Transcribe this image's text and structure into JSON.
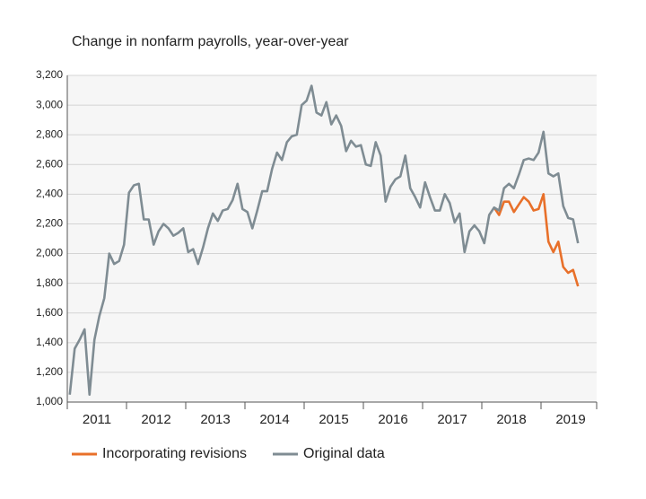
{
  "chart_data": {
    "type": "line",
    "title": "Change in nonfarm payrolls, year-over-year",
    "categories": [
      null,
      null,
      null,
      null,
      null,
      "2011",
      null,
      null,
      null,
      null,
      null,
      null,
      null,
      null,
      null,
      null,
      null,
      "2012",
      null,
      null,
      null,
      null,
      null,
      null,
      null,
      null,
      null,
      null,
      null,
      "2013",
      null,
      null,
      null,
      null,
      null,
      null,
      null,
      null,
      null,
      null,
      null,
      "2014",
      null,
      null,
      null,
      null,
      null,
      null,
      null,
      null,
      null,
      null,
      null,
      "2015",
      null,
      null,
      null,
      null,
      null,
      null,
      null,
      null,
      null,
      null,
      null,
      "2016",
      null,
      null,
      null,
      null,
      null,
      null,
      null,
      null,
      null,
      null,
      null,
      "2017",
      null,
      null,
      null,
      null,
      null,
      null,
      null,
      null,
      null,
      null,
      null,
      "2018",
      null,
      null,
      null,
      null,
      null,
      null,
      null,
      null,
      null,
      null,
      null,
      "2019",
      null,
      null
    ],
    "series": [
      {
        "name": "Incorporating revisions",
        "color": "#e8702a",
        "values": [
          null,
          null,
          null,
          null,
          null,
          null,
          null,
          null,
          null,
          null,
          null,
          null,
          null,
          null,
          null,
          null,
          null,
          null,
          null,
          null,
          null,
          null,
          null,
          null,
          null,
          null,
          null,
          null,
          null,
          null,
          null,
          null,
          null,
          null,
          null,
          null,
          null,
          null,
          null,
          null,
          null,
          null,
          null,
          null,
          null,
          null,
          null,
          null,
          null,
          null,
          null,
          null,
          null,
          null,
          null,
          null,
          null,
          null,
          null,
          null,
          null,
          null,
          null,
          null,
          null,
          null,
          null,
          null,
          null,
          null,
          null,
          null,
          null,
          null,
          null,
          null,
          null,
          null,
          null,
          null,
          null,
          null,
          null,
          null,
          null,
          null,
          2310,
          2260,
          2350,
          2350,
          2280,
          2330,
          2380,
          2350,
          2290,
          2300,
          2400,
          2080,
          2010,
          2080,
          1910,
          1870,
          1890,
          1780
        ]
      },
      {
        "name": "Original data",
        "color": "#7f8c93",
        "values": [
          1050,
          1360,
          1420,
          1490,
          1050,
          1420,
          1580,
          1700,
          2000,
          1930,
          1950,
          2060,
          2410,
          2460,
          2470,
          2230,
          2230,
          2060,
          2150,
          2200,
          2170,
          2120,
          2140,
          2170,
          2010,
          2030,
          1930,
          2040,
          2170,
          2270,
          2220,
          2290,
          2300,
          2360,
          2470,
          2300,
          2280,
          2170,
          2290,
          2420,
          2420,
          2570,
          2680,
          2630,
          2750,
          2790,
          2800,
          3000,
          3030,
          3130,
          2950,
          2930,
          3020,
          2870,
          2930,
          2860,
          2690,
          2760,
          2720,
          2730,
          2600,
          2590,
          2750,
          2660,
          2350,
          2450,
          2500,
          2520,
          2660,
          2440,
          2380,
          2310,
          2480,
          2380,
          2290,
          2290,
          2400,
          2340,
          2210,
          2270,
          2010,
          2150,
          2190,
          2150,
          2070,
          2260,
          2310,
          2290,
          2440,
          2470,
          2440,
          2530,
          2630,
          2640,
          2630,
          2680,
          2820,
          2540,
          2520,
          2540,
          2320,
          2240,
          2230,
          2070
        ]
      }
    ],
    "ylim": [
      1000,
      3200
    ],
    "yticks": [
      {
        "value": 1000,
        "label": "1,000"
      },
      {
        "value": 1200,
        "label": "1,200"
      },
      {
        "value": 1400,
        "label": "1,400"
      },
      {
        "value": 1600,
        "label": "1,600"
      },
      {
        "value": 1800,
        "label": "1,800"
      },
      {
        "value": 2000,
        "label": "2,000"
      },
      {
        "value": 2200,
        "label": "2,200"
      },
      {
        "value": 2400,
        "label": "2,400"
      },
      {
        "value": 2600,
        "label": "2,600"
      },
      {
        "value": 2800,
        "label": "2,800"
      },
      {
        "value": 3000,
        "label": "3,000"
      },
      {
        "value": 3200,
        "label": "3,200"
      }
    ],
    "grid": true
  }
}
